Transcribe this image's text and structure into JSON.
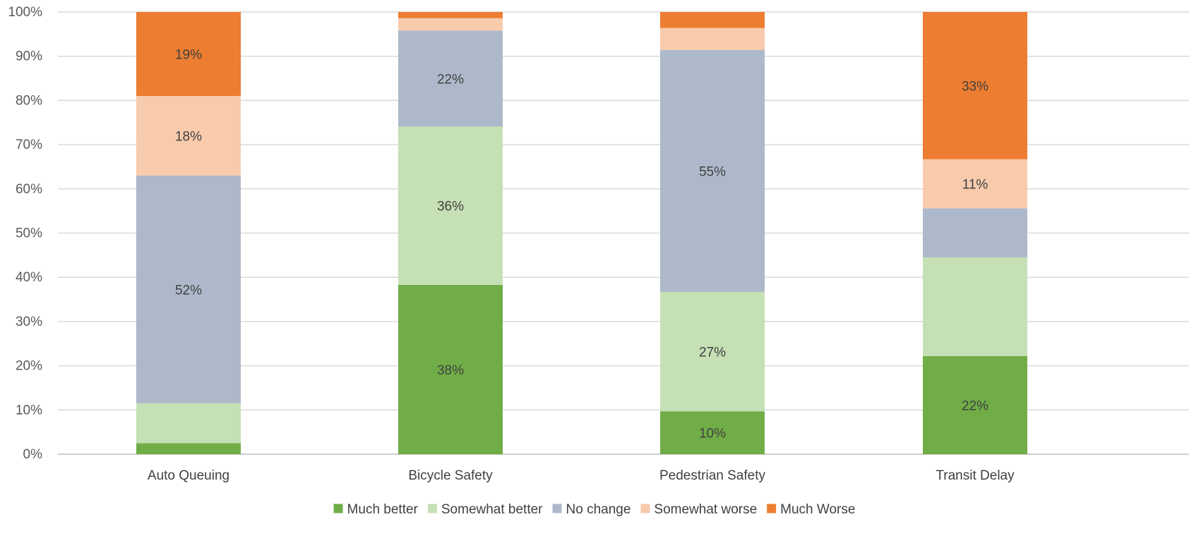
{
  "chart_data": {
    "type": "bar",
    "stacked": true,
    "stack_mode": "percent",
    "categories": [
      "Auto Queuing",
      "Bicycle Safety",
      "Pedestrian Safety",
      "Transit Delay"
    ],
    "series": [
      {
        "name": "Much better",
        "color": "#70AD47",
        "values": [
          2.5,
          38.3,
          9.7,
          22.2
        ]
      },
      {
        "name": "Somewhat better",
        "color": "#C5E0B4",
        "values": [
          9.0,
          35.8,
          27.0,
          22.3
        ]
      },
      {
        "name": "No change",
        "color": "#ADB9CA",
        "values": [
          51.5,
          21.7,
          54.7,
          11.1
        ]
      },
      {
        "name": "Somewhat worse",
        "color": "#F8CBAD",
        "values": [
          18.0,
          2.8,
          5.0,
          11.1
        ]
      },
      {
        "name": "Much Worse",
        "color": "#ED7D31",
        "values": [
          19.0,
          1.4,
          3.6,
          33.3
        ]
      }
    ],
    "data_labels": [
      {
        "category": 0,
        "series": 2,
        "text": "52%"
      },
      {
        "category": 0,
        "series": 3,
        "text": "18%"
      },
      {
        "category": 0,
        "series": 4,
        "text": "19%"
      },
      {
        "category": 1,
        "series": 0,
        "text": "38%"
      },
      {
        "category": 1,
        "series": 1,
        "text": "36%"
      },
      {
        "category": 1,
        "series": 2,
        "text": "22%"
      },
      {
        "category": 2,
        "series": 0,
        "text": "10%"
      },
      {
        "category": 2,
        "series": 1,
        "text": "27%"
      },
      {
        "category": 2,
        "series": 2,
        "text": "55%"
      },
      {
        "category": 3,
        "series": 0,
        "text": "22%"
      },
      {
        "category": 3,
        "series": 3,
        "text": "11%"
      },
      {
        "category": 3,
        "series": 4,
        "text": "33%"
      }
    ],
    "y_ticks": [
      "0%",
      "10%",
      "20%",
      "30%",
      "40%",
      "50%",
      "60%",
      "70%",
      "80%",
      "90%",
      "100%"
    ],
    "ylim": [
      0,
      100
    ],
    "grid": true,
    "legend_position": "bottom",
    "title": "",
    "xlabel": "",
    "ylabel": ""
  }
}
